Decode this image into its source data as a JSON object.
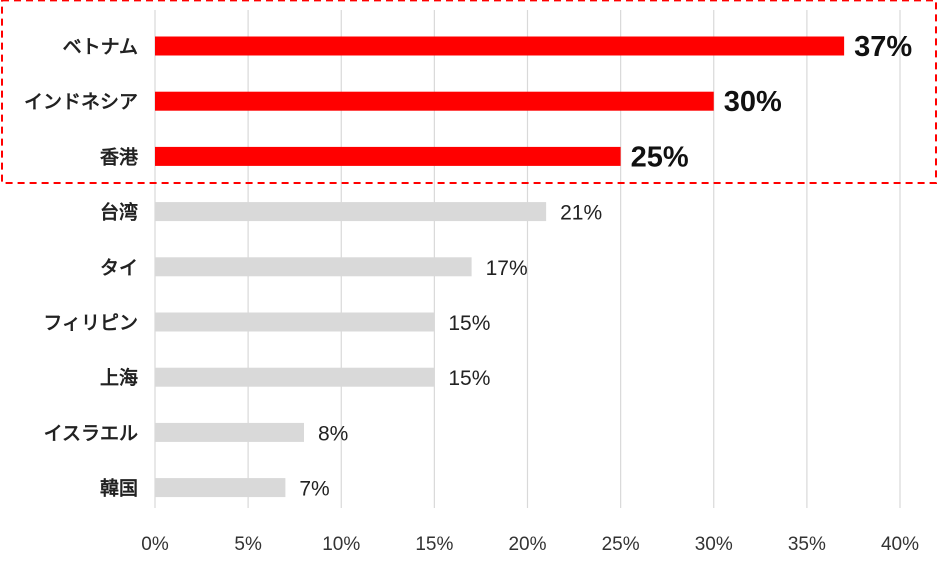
{
  "chart_data": {
    "type": "bar",
    "orientation": "horizontal",
    "categories": [
      "ベトナム",
      "インドネシア",
      "香港",
      "台湾",
      "タイ",
      "フィリピン",
      "上海",
      "イスラエル",
      "韓国"
    ],
    "values": [
      37,
      30,
      25,
      21,
      17,
      15,
      15,
      8,
      7
    ],
    "value_labels": [
      "37%",
      "30%",
      "25%",
      "21%",
      "17%",
      "15%",
      "15%",
      "8%",
      "7%"
    ],
    "highlighted": [
      true,
      true,
      true,
      false,
      false,
      false,
      false,
      false,
      false
    ],
    "x_ticks": [
      "0%",
      "5%",
      "10%",
      "15%",
      "20%",
      "25%",
      "30%",
      "35%",
      "40%"
    ],
    "xlim": [
      0,
      40
    ],
    "title": "",
    "xlabel": "",
    "ylabel": "",
    "grid": "vertical",
    "colors": {
      "highlight_bar": "#ff0000",
      "normal_bar": "#d9d9d9",
      "highlight_box": "#ff0000",
      "gridline": "#d9d9d9"
    }
  }
}
